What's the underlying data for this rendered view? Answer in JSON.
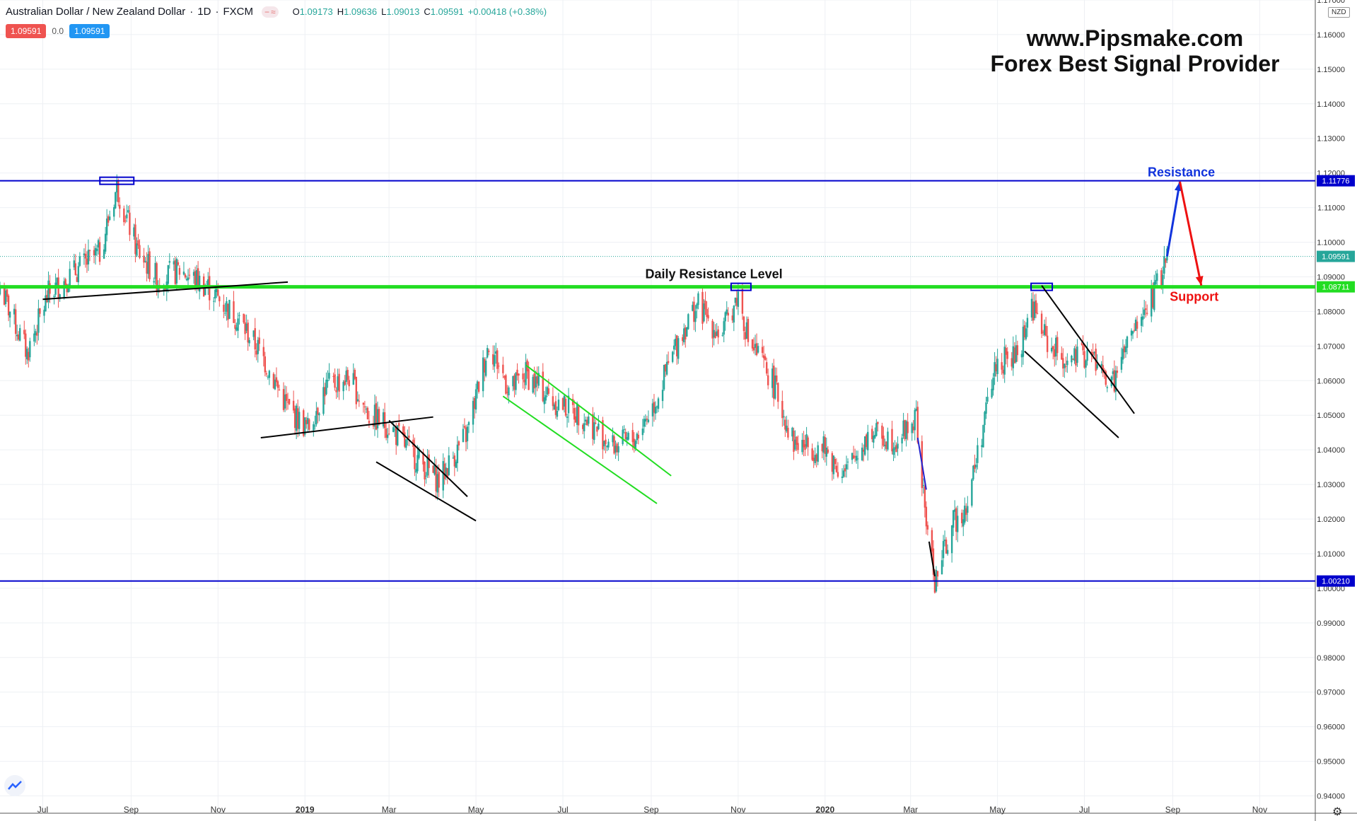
{
  "header": {
    "symbol": "Australian Dollar / New Zealand Dollar",
    "interval": "1D",
    "source": "FXCM",
    "o_label": "O",
    "o_value": "1.09173",
    "h_label": "H",
    "h_value": "1.09636",
    "l_label": "L",
    "l_value": "1.09013",
    "c_label": "C",
    "c_value": "1.09591",
    "change": "+0.00418 (+0.38%)",
    "sell_price": "1.09591",
    "spread": "0.0",
    "buy_price": "1.09591",
    "currency_badge": "NZD"
  },
  "watermark": {
    "line1": "www.Pipsmake.com",
    "line2": "Forex Best Signal Provider"
  },
  "colors": {
    "up": "#26a69a",
    "down": "#ef5350",
    "resistance_line": "#0000cc",
    "green_level": "#22dd22",
    "support_text": "#ee1111",
    "grid": "#eef0f4"
  },
  "chart_data": {
    "type": "candlestick",
    "title": "Australian Dollar / New Zealand Dollar · 1D · FXCM",
    "xlabel": "",
    "ylabel": "",
    "x_tick_labels": [
      "Jul",
      "Sep",
      "Nov",
      "2019",
      "Mar",
      "May",
      "Jul",
      "Sep",
      "Nov",
      "2020",
      "Mar",
      "May",
      "Jul",
      "Sep",
      "Nov"
    ],
    "x_range": [
      "2018-06-01",
      "2020-12-10"
    ],
    "y_range": [
      0.935,
      1.17
    ],
    "y_ticks": [
      1.17,
      1.16,
      1.15,
      1.14,
      1.13,
      1.12,
      1.11,
      1.1,
      1.09,
      1.08,
      1.07,
      1.06,
      1.05,
      1.04,
      1.03,
      1.02,
      1.01,
      1.0,
      0.99,
      0.98,
      0.97,
      0.96,
      0.95,
      0.94
    ],
    "y_tick_labels": [
      "1.17000",
      "1.16000",
      "1.15000",
      "1.14000",
      "1.13000",
      "1.12000",
      "1.11000",
      "1.10000",
      "1.09000",
      "1.08000",
      "1.07000",
      "1.06000",
      "1.05000",
      "1.04000",
      "1.03000",
      "1.02000",
      "1.01000",
      "1.00000",
      "0.99000",
      "0.98000",
      "0.97000",
      "0.96000",
      "0.95000",
      "0.94000"
    ],
    "grid": true,
    "price_path": [
      [
        "2018-06-01",
        1.087
      ],
      [
        "2018-06-20",
        1.068
      ],
      [
        "2018-07-05",
        1.085
      ],
      [
        "2018-07-25",
        1.092
      ],
      [
        "2018-08-10",
        1.097
      ],
      [
        "2018-08-22",
        1.116
      ],
      [
        "2018-09-05",
        1.098
      ],
      [
        "2018-09-20",
        1.089
      ],
      [
        "2018-10-05",
        1.092
      ],
      [
        "2018-10-25",
        1.087
      ],
      [
        "2018-11-05",
        1.082
      ],
      [
        "2018-11-15",
        1.078
      ],
      [
        "2018-12-01",
        1.068
      ],
      [
        "2018-12-20",
        1.052
      ],
      [
        "2019-01-03",
        1.046
      ],
      [
        "2019-01-15",
        1.058
      ],
      [
        "2019-02-01",
        1.061
      ],
      [
        "2019-02-15",
        1.05
      ],
      [
        "2019-03-01",
        1.047
      ],
      [
        "2019-03-15",
        1.04
      ],
      [
        "2019-04-05",
        1.031
      ],
      [
        "2019-04-25",
        1.045
      ],
      [
        "2019-05-10",
        1.071
      ],
      [
        "2019-05-25",
        1.057
      ],
      [
        "2019-06-05",
        1.062
      ],
      [
        "2019-06-25",
        1.054
      ],
      [
        "2019-07-15",
        1.05
      ],
      [
        "2019-08-05",
        1.041
      ],
      [
        "2019-08-20",
        1.043
      ],
      [
        "2019-09-05",
        1.055
      ],
      [
        "2019-09-20",
        1.072
      ],
      [
        "2019-10-03",
        1.082
      ],
      [
        "2019-10-20",
        1.073
      ],
      [
        "2019-11-01",
        1.085
      ],
      [
        "2019-11-08",
        1.072
      ],
      [
        "2019-11-25",
        1.06
      ],
      [
        "2019-12-10",
        1.042
      ],
      [
        "2019-12-31",
        1.04
      ],
      [
        "2020-01-15",
        1.033
      ],
      [
        "2020-02-01",
        1.045
      ],
      [
        "2020-02-20",
        1.043
      ],
      [
        "2020-03-05",
        1.049
      ],
      [
        "2020-03-10",
        1.026
      ],
      [
        "2020-03-18",
        1.002
      ],
      [
        "2020-03-30",
        1.018
      ],
      [
        "2020-04-10",
        1.025
      ],
      [
        "2020-04-30",
        1.065
      ],
      [
        "2020-05-15",
        1.067
      ],
      [
        "2020-05-25",
        1.082
      ],
      [
        "2020-06-05",
        1.071
      ],
      [
        "2020-06-20",
        1.065
      ],
      [
        "2020-07-05",
        1.068
      ],
      [
        "2020-07-20",
        1.058
      ],
      [
        "2020-07-30",
        1.069
      ],
      [
        "2020-08-10",
        1.078
      ],
      [
        "2020-08-20",
        1.086
      ],
      [
        "2020-08-28",
        1.0959
      ]
    ],
    "annotations": {
      "resistance_label": "Resistance",
      "support_label": "Support",
      "daily_level_label": "Daily Resistance Level",
      "resistance_value": "1.11776",
      "last_price_value": "1.09591",
      "daily_level_value": "1.08711",
      "support_value": "1.00210",
      "resistance_price": 1.11776,
      "last_price": 1.09591,
      "daily_level_price": 1.08711,
      "support_price": 1.0021,
      "forecast_path": [
        [
          "2020-08-28",
          1.0959
        ],
        [
          "2020-09-06",
          1.1175
        ],
        [
          "2020-09-21",
          1.0875
        ]
      ]
    }
  }
}
